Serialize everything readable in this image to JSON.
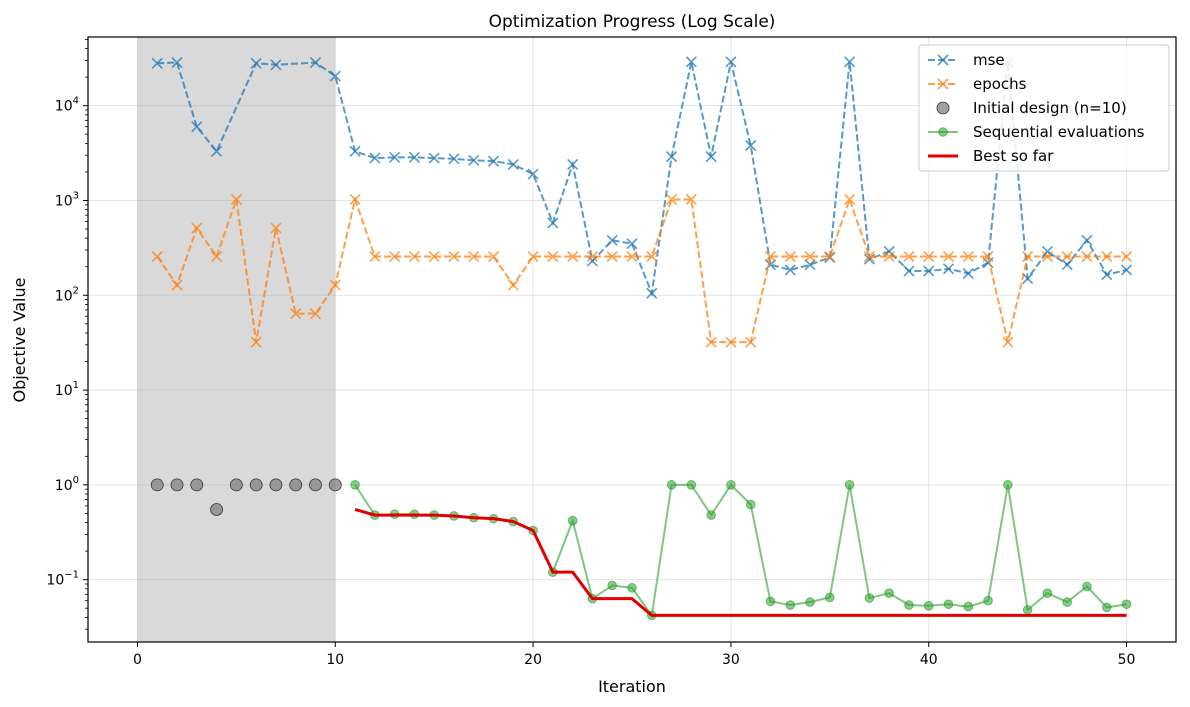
{
  "chart_data": {
    "type": "line",
    "title": "Optimization Progress (Log Scale)",
    "xlabel": "Iteration",
    "ylabel": "Objective Value",
    "yscale": "log",
    "xlim": [
      -2.5,
      52.5
    ],
    "ylim": [
      0.022,
      53000
    ],
    "grid": true,
    "legend_position": "top-right",
    "x_ticks": [
      0,
      10,
      20,
      30,
      40,
      50
    ],
    "x_tick_labels": [
      "0",
      "10",
      "20",
      "30",
      "40",
      "50"
    ],
    "y_ticks": [
      0.1,
      1,
      10,
      100,
      1000,
      10000
    ],
    "y_tick_labels": [
      {
        "base": "10",
        "exp": "−1"
      },
      {
        "base": "10",
        "exp": "0"
      },
      {
        "base": "10",
        "exp": "1"
      },
      {
        "base": "10",
        "exp": "2"
      },
      {
        "base": "10",
        "exp": "3"
      },
      {
        "base": "10",
        "exp": "4"
      }
    ],
    "initial_region": [
      0,
      10
    ],
    "series": [
      {
        "name": "mse",
        "style": "dashed-x",
        "color": "#1f77b4",
        "x": [
          1,
          2,
          3,
          4,
          6,
          7,
          9,
          10,
          11,
          12,
          13,
          14,
          15,
          16,
          17,
          18,
          19,
          20,
          21,
          22,
          23,
          24,
          25,
          26,
          27,
          28,
          29,
          30,
          31,
          32,
          33,
          34,
          35,
          36,
          37,
          38,
          39,
          40,
          41,
          42,
          43,
          44,
          45,
          46,
          47,
          48,
          49,
          50
        ],
        "values": [
          28000,
          28500,
          6000,
          3300,
          28000,
          27000,
          28500,
          20500,
          3300,
          2800,
          2850,
          2850,
          2800,
          2750,
          2650,
          2600,
          2400,
          1900,
          580,
          2400,
          230,
          380,
          350,
          105,
          2900,
          29000,
          2900,
          29000,
          3800,
          210,
          185,
          210,
          250,
          29000,
          240,
          290,
          180,
          180,
          190,
          170,
          220,
          28500,
          150,
          290,
          210,
          380,
          165,
          185
        ]
      },
      {
        "name": "epochs",
        "style": "dashed-x",
        "color": "#ff7f0e",
        "x": [
          1,
          2,
          3,
          4,
          5,
          6,
          7,
          8,
          9,
          10,
          11,
          12,
          13,
          14,
          15,
          16,
          17,
          18,
          19,
          20,
          21,
          22,
          23,
          24,
          25,
          26,
          27,
          28,
          29,
          30,
          31,
          32,
          33,
          34,
          35,
          36,
          37,
          38,
          39,
          40,
          41,
          42,
          43,
          44,
          45,
          46,
          47,
          48,
          49,
          50
        ],
        "values": [
          256,
          128,
          512,
          256,
          1024,
          32,
          512,
          64,
          64,
          128,
          1024,
          256,
          256,
          256,
          256,
          256,
          256,
          256,
          128,
          256,
          256,
          256,
          256,
          256,
          256,
          256,
          1024,
          1024,
          32,
          32,
          32,
          256,
          256,
          256,
          256,
          1024,
          256,
          256,
          256,
          256,
          256,
          256,
          256,
          32,
          256,
          256,
          256,
          256,
          256,
          256
        ]
      },
      {
        "name": "Initial design (n=10)",
        "style": "scatter",
        "color": "#808080",
        "x": [
          1,
          2,
          3,
          4,
          5,
          6,
          7,
          8,
          9,
          10
        ],
        "values": [
          1,
          1,
          1,
          0.55,
          1,
          1,
          1,
          1,
          1,
          1
        ]
      },
      {
        "name": "Sequential evaluations",
        "style": "line-dot",
        "color": "#2ca02c",
        "x": [
          11,
          12,
          13,
          14,
          15,
          16,
          17,
          18,
          19,
          20,
          21,
          22,
          23,
          24,
          25,
          26,
          27,
          28,
          29,
          30,
          31,
          32,
          33,
          34,
          35,
          36,
          37,
          38,
          39,
          40,
          41,
          42,
          43,
          44,
          45,
          46,
          47,
          48,
          49,
          50
        ],
        "values": [
          1,
          0.48,
          0.49,
          0.49,
          0.48,
          0.47,
          0.45,
          0.44,
          0.41,
          0.33,
          0.12,
          0.42,
          0.063,
          0.087,
          0.082,
          0.042,
          1,
          1,
          0.48,
          1,
          0.62,
          0.059,
          0.054,
          0.058,
          0.065,
          1,
          0.064,
          0.072,
          0.054,
          0.053,
          0.055,
          0.052,
          0.06,
          1,
          0.048,
          0.072,
          0.058,
          0.085,
          0.051,
          0.055
        ]
      },
      {
        "name": "Best so far",
        "style": "step",
        "color": "#e00000",
        "x": [
          11,
          12,
          13,
          14,
          15,
          16,
          17,
          18,
          19,
          20,
          21,
          22,
          23,
          24,
          25,
          26,
          27,
          28,
          29,
          30,
          31,
          32,
          33,
          34,
          35,
          36,
          37,
          38,
          39,
          40,
          41,
          42,
          43,
          44,
          45,
          46,
          47,
          48,
          49,
          50
        ],
        "values": [
          0.55,
          0.48,
          0.48,
          0.48,
          0.48,
          0.47,
          0.45,
          0.44,
          0.41,
          0.33,
          0.12,
          0.12,
          0.063,
          0.063,
          0.063,
          0.042,
          0.042,
          0.042,
          0.042,
          0.042,
          0.042,
          0.042,
          0.042,
          0.042,
          0.042,
          0.042,
          0.042,
          0.042,
          0.042,
          0.042,
          0.042,
          0.042,
          0.042,
          0.042,
          0.042,
          0.042,
          0.042,
          0.042,
          0.042,
          0.042
        ]
      }
    ]
  }
}
